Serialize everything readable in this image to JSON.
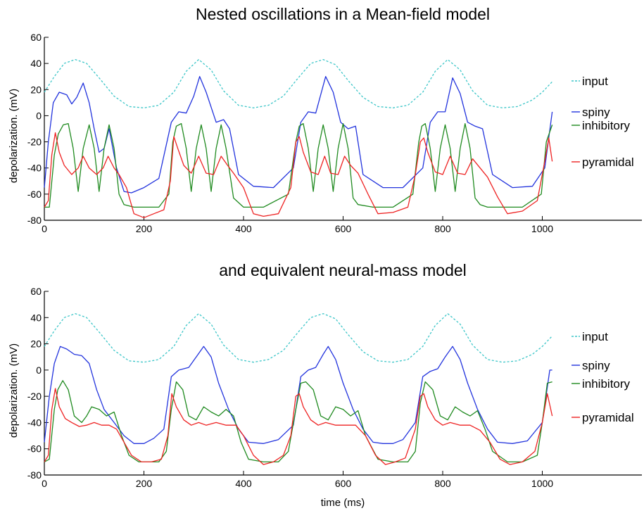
{
  "figure": {
    "xlabel": "time (ms)"
  },
  "series_colors": {
    "input": "#3cc6c8",
    "spiny": "#2233dd",
    "inhibitory": "#1f8a1f",
    "pyramidal": "#ee2222"
  },
  "chart_data": [
    {
      "type": "line",
      "title": "Nested oscillations in a Mean-field model",
      "xlabel": "",
      "ylabel": "depolarization. (mV)",
      "xlim": [
        0,
        1200
      ],
      "ylim": [
        -80,
        60
      ],
      "xticks": [
        0,
        200,
        400,
        600,
        800,
        1000
      ],
      "yticks": [
        60,
        40,
        20,
        0,
        -20,
        -40,
        -60,
        -80
      ],
      "grid": false,
      "legend_position": "right",
      "series": [
        {
          "name": "input",
          "style": "dashed",
          "x": [
            0,
            20,
            40,
            62,
            85,
            110,
            140,
            170,
            200,
            230,
            260,
            285,
            310,
            335,
            360,
            390,
            420,
            450,
            480,
            510,
            535,
            560,
            585,
            610,
            640,
            670,
            700,
            730,
            760,
            785,
            810,
            835,
            860,
            890,
            920,
            950,
            980,
            1000,
            1020
          ],
          "y": [
            18,
            30,
            40,
            43,
            40,
            29,
            15,
            7,
            6,
            8,
            18,
            34,
            43,
            35,
            19,
            8,
            6,
            8,
            15,
            29,
            40,
            43,
            39,
            27,
            14,
            7,
            6,
            8,
            18,
            34,
            43,
            35,
            19,
            8,
            6,
            7,
            12,
            18,
            26
          ]
        },
        {
          "name": "spiny",
          "x": [
            0,
            8,
            18,
            30,
            45,
            55,
            65,
            78,
            90,
            100,
            110,
            120,
            130,
            145,
            160,
            175,
            200,
            230,
            255,
            270,
            285,
            300,
            312,
            325,
            345,
            360,
            372,
            390,
            420,
            460,
            500,
            515,
            530,
            545,
            565,
            580,
            595,
            610,
            625,
            640,
            680,
            720,
            760,
            775,
            790,
            805,
            820,
            835,
            850,
            865,
            880,
            900,
            940,
            980,
            1005,
            1020
          ],
          "y": [
            -55,
            -20,
            10,
            18,
            16,
            9,
            14,
            25,
            10,
            -10,
            -28,
            -25,
            -10,
            -40,
            -58,
            -59,
            -55,
            -48,
            -5,
            3,
            2,
            15,
            30,
            18,
            -5,
            -3,
            -10,
            -45,
            -54,
            -55,
            -40,
            -5,
            3,
            2,
            30,
            18,
            -5,
            -10,
            -8,
            -45,
            -55,
            -55,
            -40,
            -5,
            3,
            3,
            29,
            17,
            -5,
            -8,
            -10,
            -45,
            -55,
            -54,
            -40,
            3
          ]
        },
        {
          "name": "inhibitory",
          "x": [
            0,
            10,
            20,
            28,
            38,
            48,
            58,
            68,
            78,
            90,
            100,
            110,
            120,
            130,
            140,
            150,
            160,
            180,
            200,
            230,
            250,
            258,
            265,
            275,
            285,
            295,
            305,
            315,
            325,
            335,
            345,
            355,
            365,
            380,
            400,
            440,
            490,
            505,
            512,
            520,
            530,
            540,
            550,
            560,
            570,
            580,
            590,
            600,
            610,
            620,
            630,
            660,
            700,
            740,
            752,
            758,
            765,
            775,
            785,
            795,
            805,
            815,
            825,
            835,
            845,
            855,
            865,
            875,
            890,
            920,
            960,
            998,
            1008,
            1020
          ],
          "y": [
            -70,
            -70,
            -30,
            -14,
            -7,
            -6,
            -25,
            -58,
            -25,
            -7,
            -25,
            -58,
            -25,
            -7,
            -25,
            -60,
            -68,
            -70,
            -70,
            -70,
            -60,
            -20,
            -8,
            -6,
            -25,
            -58,
            -25,
            -7,
            -25,
            -58,
            -25,
            -7,
            -25,
            -63,
            -70,
            -70,
            -60,
            -20,
            -8,
            -6,
            -25,
            -58,
            -25,
            -7,
            -25,
            -58,
            -25,
            -6,
            -25,
            -63,
            -68,
            -70,
            -70,
            -60,
            -20,
            -8,
            -6,
            -25,
            -58,
            -25,
            -7,
            -25,
            -58,
            -25,
            -6,
            -25,
            -63,
            -68,
            -70,
            -70,
            -70,
            -60,
            -20,
            -7
          ]
        },
        {
          "name": "pyramidal",
          "x": [
            0,
            8,
            15,
            22,
            30,
            40,
            55,
            68,
            78,
            90,
            105,
            118,
            128,
            140,
            150,
            165,
            180,
            200,
            220,
            240,
            253,
            260,
            268,
            280,
            295,
            310,
            325,
            340,
            355,
            368,
            380,
            400,
            420,
            440,
            470,
            495,
            505,
            512,
            520,
            535,
            550,
            563,
            575,
            590,
            603,
            615,
            630,
            650,
            670,
            700,
            730,
            745,
            755,
            762,
            770,
            785,
            800,
            815,
            830,
            845,
            860,
            875,
            890,
            910,
            930,
            960,
            990,
            1005,
            1013,
            1020
          ],
          "y": [
            -70,
            -65,
            -30,
            -13,
            -28,
            -38,
            -45,
            -40,
            -31,
            -40,
            -45,
            -40,
            -31,
            -40,
            -45,
            -55,
            -75,
            -78,
            -75,
            -72,
            -50,
            -16,
            -25,
            -38,
            -44,
            -31,
            -44,
            -45,
            -31,
            -38,
            -44,
            -55,
            -75,
            -77,
            -75,
            -55,
            -20,
            -16,
            -28,
            -43,
            -45,
            -31,
            -44,
            -45,
            -31,
            -38,
            -44,
            -60,
            -75,
            -74,
            -70,
            -45,
            -20,
            -17,
            -28,
            -43,
            -45,
            -31,
            -44,
            -45,
            -33,
            -40,
            -47,
            -62,
            -75,
            -73,
            -65,
            -35,
            -17,
            -35
          ]
        }
      ]
    },
    {
      "type": "line",
      "title": "and equivalent neural-mass model",
      "xlabel": "time (ms)",
      "ylabel": "depolarization. (mV)",
      "xlim": [
        0,
        1200
      ],
      "ylim": [
        -80,
        60
      ],
      "xticks": [
        0,
        200,
        400,
        600,
        800,
        1000
      ],
      "yticks": [
        60,
        40,
        20,
        0,
        -20,
        -40,
        -60,
        -80
      ],
      "grid": false,
      "legend_position": "right",
      "series": [
        {
          "name": "input",
          "style": "dashed",
          "x": [
            0,
            20,
            40,
            62,
            85,
            110,
            140,
            170,
            200,
            230,
            260,
            285,
            310,
            335,
            360,
            390,
            420,
            450,
            480,
            510,
            535,
            560,
            585,
            610,
            640,
            670,
            700,
            730,
            760,
            785,
            810,
            835,
            860,
            890,
            920,
            950,
            980,
            1000,
            1020
          ],
          "y": [
            18,
            30,
            40,
            43,
            40,
            29,
            15,
            7,
            6,
            8,
            18,
            34,
            43,
            35,
            19,
            8,
            6,
            8,
            15,
            29,
            40,
            43,
            39,
            27,
            14,
            7,
            6,
            8,
            18,
            34,
            43,
            35,
            19,
            8,
            6,
            7,
            12,
            18,
            26
          ]
        },
        {
          "name": "spiny",
          "x": [
            0,
            10,
            20,
            32,
            45,
            60,
            75,
            90,
            105,
            120,
            140,
            160,
            180,
            200,
            220,
            240,
            255,
            270,
            290,
            305,
            320,
            335,
            350,
            370,
            390,
            410,
            440,
            470,
            500,
            515,
            530,
            545,
            560,
            570,
            585,
            600,
            620,
            640,
            660,
            680,
            700,
            720,
            745,
            760,
            775,
            790,
            805,
            820,
            835,
            850,
            870,
            890,
            910,
            940,
            970,
            1000,
            1015,
            1020
          ],
          "y": [
            -55,
            -20,
            5,
            18,
            16,
            12,
            11,
            5,
            -15,
            -30,
            -40,
            -50,
            -56,
            -56,
            -52,
            -45,
            -5,
            0,
            2,
            10,
            18,
            10,
            -10,
            -30,
            -45,
            -55,
            -56,
            -53,
            -42,
            -5,
            0,
            2,
            12,
            18,
            8,
            -10,
            -30,
            -45,
            -55,
            -56,
            -56,
            -53,
            -40,
            -5,
            -1,
            1,
            10,
            18,
            8,
            -10,
            -30,
            -45,
            -55,
            -56,
            -54,
            -40,
            0,
            0
          ]
        },
        {
          "name": "inhibitory",
          "x": [
            0,
            10,
            20,
            27,
            37,
            48,
            60,
            75,
            85,
            95,
            110,
            125,
            140,
            155,
            170,
            190,
            210,
            230,
            245,
            255,
            265,
            278,
            290,
            305,
            320,
            335,
            350,
            365,
            380,
            395,
            410,
            440,
            470,
            490,
            505,
            515,
            525,
            540,
            555,
            570,
            585,
            600,
            615,
            630,
            645,
            670,
            700,
            730,
            745,
            755,
            765,
            780,
            795,
            810,
            825,
            840,
            855,
            870,
            885,
            900,
            930,
            960,
            990,
            1000,
            1010,
            1020
          ],
          "y": [
            -70,
            -68,
            -30,
            -15,
            -8,
            -15,
            -35,
            -40,
            -35,
            -28,
            -30,
            -35,
            -32,
            -50,
            -65,
            -70,
            -70,
            -70,
            -62,
            -30,
            -9,
            -15,
            -35,
            -38,
            -28,
            -32,
            -35,
            -30,
            -35,
            -55,
            -68,
            -70,
            -70,
            -62,
            -30,
            -10,
            -9,
            -15,
            -35,
            -38,
            -28,
            -30,
            -35,
            -31,
            -50,
            -68,
            -70,
            -70,
            -62,
            -25,
            -9,
            -15,
            -35,
            -38,
            -28,
            -32,
            -35,
            -31,
            -45,
            -62,
            -70,
            -70,
            -65,
            -40,
            -10,
            -9
          ]
        },
        {
          "name": "pyramidal",
          "x": [
            0,
            8,
            15,
            22,
            30,
            42,
            55,
            70,
            85,
            100,
            115,
            130,
            145,
            160,
            175,
            195,
            215,
            235,
            248,
            256,
            265,
            280,
            295,
            310,
            325,
            345,
            365,
            385,
            400,
            420,
            440,
            460,
            480,
            495,
            505,
            512,
            520,
            535,
            550,
            565,
            585,
            605,
            625,
            645,
            665,
            685,
            705,
            725,
            745,
            755,
            762,
            770,
            785,
            800,
            815,
            835,
            855,
            875,
            895,
            915,
            935,
            960,
            985,
            1000,
            1010,
            1020
          ],
          "y": [
            -70,
            -65,
            -30,
            -14,
            -28,
            -37,
            -40,
            -43,
            -42,
            -40,
            -42,
            -42,
            -45,
            -55,
            -65,
            -70,
            -70,
            -68,
            -50,
            -18,
            -28,
            -38,
            -42,
            -40,
            -42,
            -40,
            -42,
            -42,
            -50,
            -65,
            -72,
            -70,
            -65,
            -50,
            -20,
            -18,
            -28,
            -38,
            -42,
            -40,
            -42,
            -42,
            -42,
            -50,
            -65,
            -72,
            -70,
            -67,
            -45,
            -20,
            -18,
            -28,
            -38,
            -42,
            -40,
            -42,
            -42,
            -46,
            -55,
            -68,
            -72,
            -70,
            -62,
            -40,
            -18,
            -35
          ]
        }
      ]
    }
  ]
}
